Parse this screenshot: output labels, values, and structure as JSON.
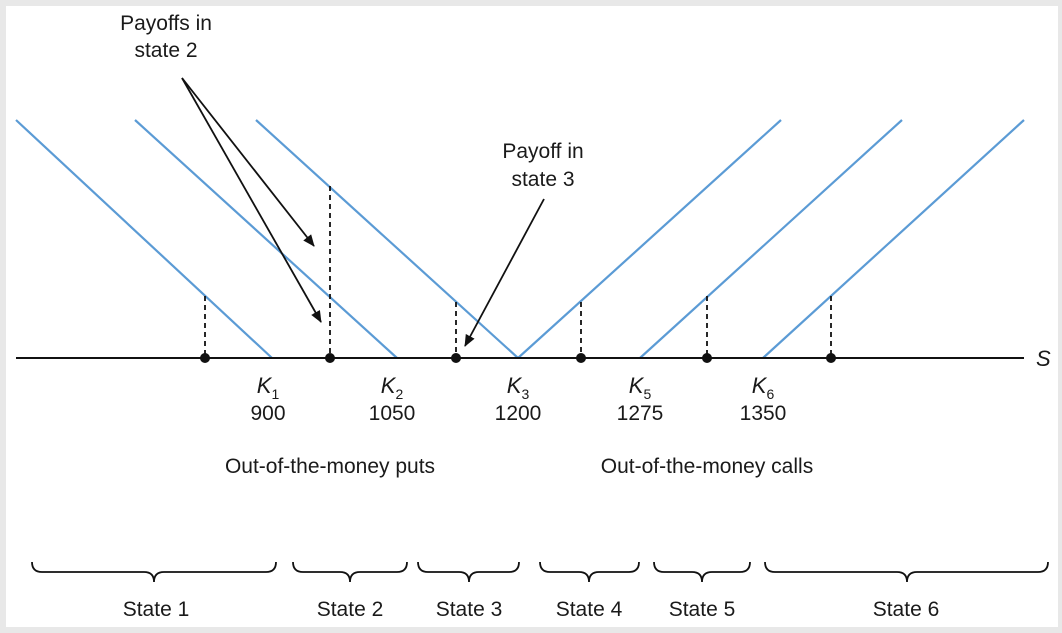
{
  "annotations": {
    "payoffs_state2": [
      "Payoffs in",
      "state 2"
    ],
    "payoff_state3": [
      "Payoff in",
      "state 3"
    ]
  },
  "axis_variable": "S",
  "strikes": [
    {
      "symbol": "K",
      "sub": "1",
      "value": "900"
    },
    {
      "symbol": "K",
      "sub": "2",
      "value": "1050"
    },
    {
      "symbol": "K",
      "sub": "3",
      "value": "1200"
    },
    {
      "symbol": "K",
      "sub": "5",
      "value": "1275"
    },
    {
      "symbol": "K",
      "sub": "6",
      "value": "1350"
    }
  ],
  "group_labels": {
    "puts": "Out-of-the-money puts",
    "calls": "Out-of-the-money calls"
  },
  "states": [
    "State 1",
    "State 2",
    "State 3",
    "State 4",
    "State 5",
    "State 6"
  ],
  "colors": {
    "payoff_line": "#5b9bd5",
    "axis": "#111111",
    "background": "#ffffff",
    "border": "#e8e8e8"
  }
}
